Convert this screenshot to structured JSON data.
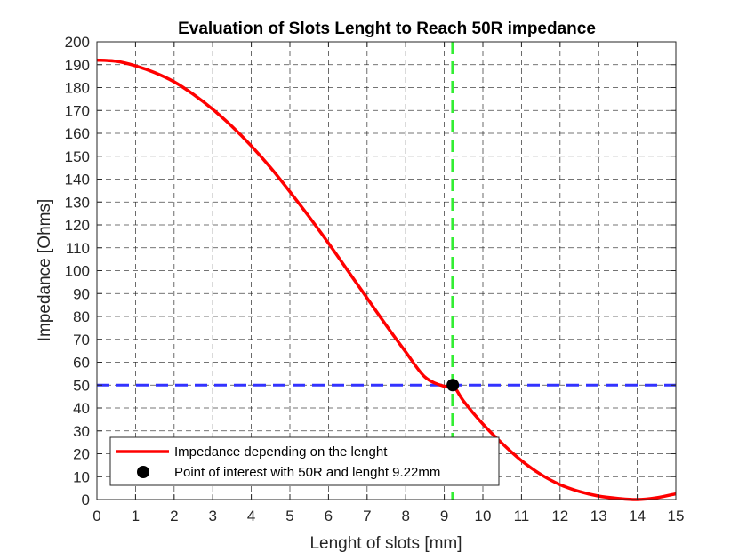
{
  "chart_data": {
    "type": "line",
    "title": "Evaluation of Slots Lenght to Reach 50R impedance",
    "xlabel": "Lenght of slots [mm]",
    "ylabel": "Impedance [Ohms]",
    "xlim": [
      0,
      15
    ],
    "ylim": [
      0,
      200
    ],
    "x_ticks": [
      0,
      1,
      2,
      3,
      4,
      5,
      6,
      7,
      8,
      9,
      10,
      11,
      12,
      13,
      14,
      15
    ],
    "y_ticks": [
      0,
      10,
      20,
      30,
      40,
      50,
      60,
      70,
      80,
      90,
      100,
      110,
      120,
      130,
      140,
      150,
      160,
      170,
      180,
      190,
      200
    ],
    "grid": true,
    "legend_position": "bottom-left",
    "series": [
      {
        "name": "Impedance depending on the lenght",
        "color": "#ff0000",
        "style": "solid",
        "x": [
          0,
          0.5,
          1,
          1.5,
          2,
          2.5,
          3,
          3.5,
          4,
          4.5,
          5,
          5.5,
          6,
          6.5,
          7,
          7.5,
          8,
          8.5,
          9,
          9.22,
          9.5,
          10,
          10.5,
          11,
          11.5,
          12,
          12.5,
          13,
          13.5,
          14,
          14.5,
          15
        ],
        "y": [
          192,
          191.5,
          189.5,
          186.5,
          182.5,
          177,
          170.5,
          163,
          154.5,
          145,
          134.5,
          123.5,
          112,
          100,
          88,
          76,
          64.5,
          53.5,
          49.5,
          50,
          43,
          33,
          24.5,
          17,
          11,
          6.5,
          3.5,
          1.5,
          0.5,
          0,
          0.8,
          2.5
        ]
      },
      {
        "name": "Point of interest with 50R and lenght 9.22mm",
        "color": "#000000",
        "marker": "circle",
        "x": [
          9.22
        ],
        "y": [
          50
        ]
      }
    ],
    "reference_lines": [
      {
        "orientation": "horizontal",
        "value": 50,
        "color": "#3333ff",
        "style": "dashed"
      },
      {
        "orientation": "vertical",
        "value": 9.22,
        "color": "#33ee33",
        "style": "dashed"
      }
    ]
  }
}
